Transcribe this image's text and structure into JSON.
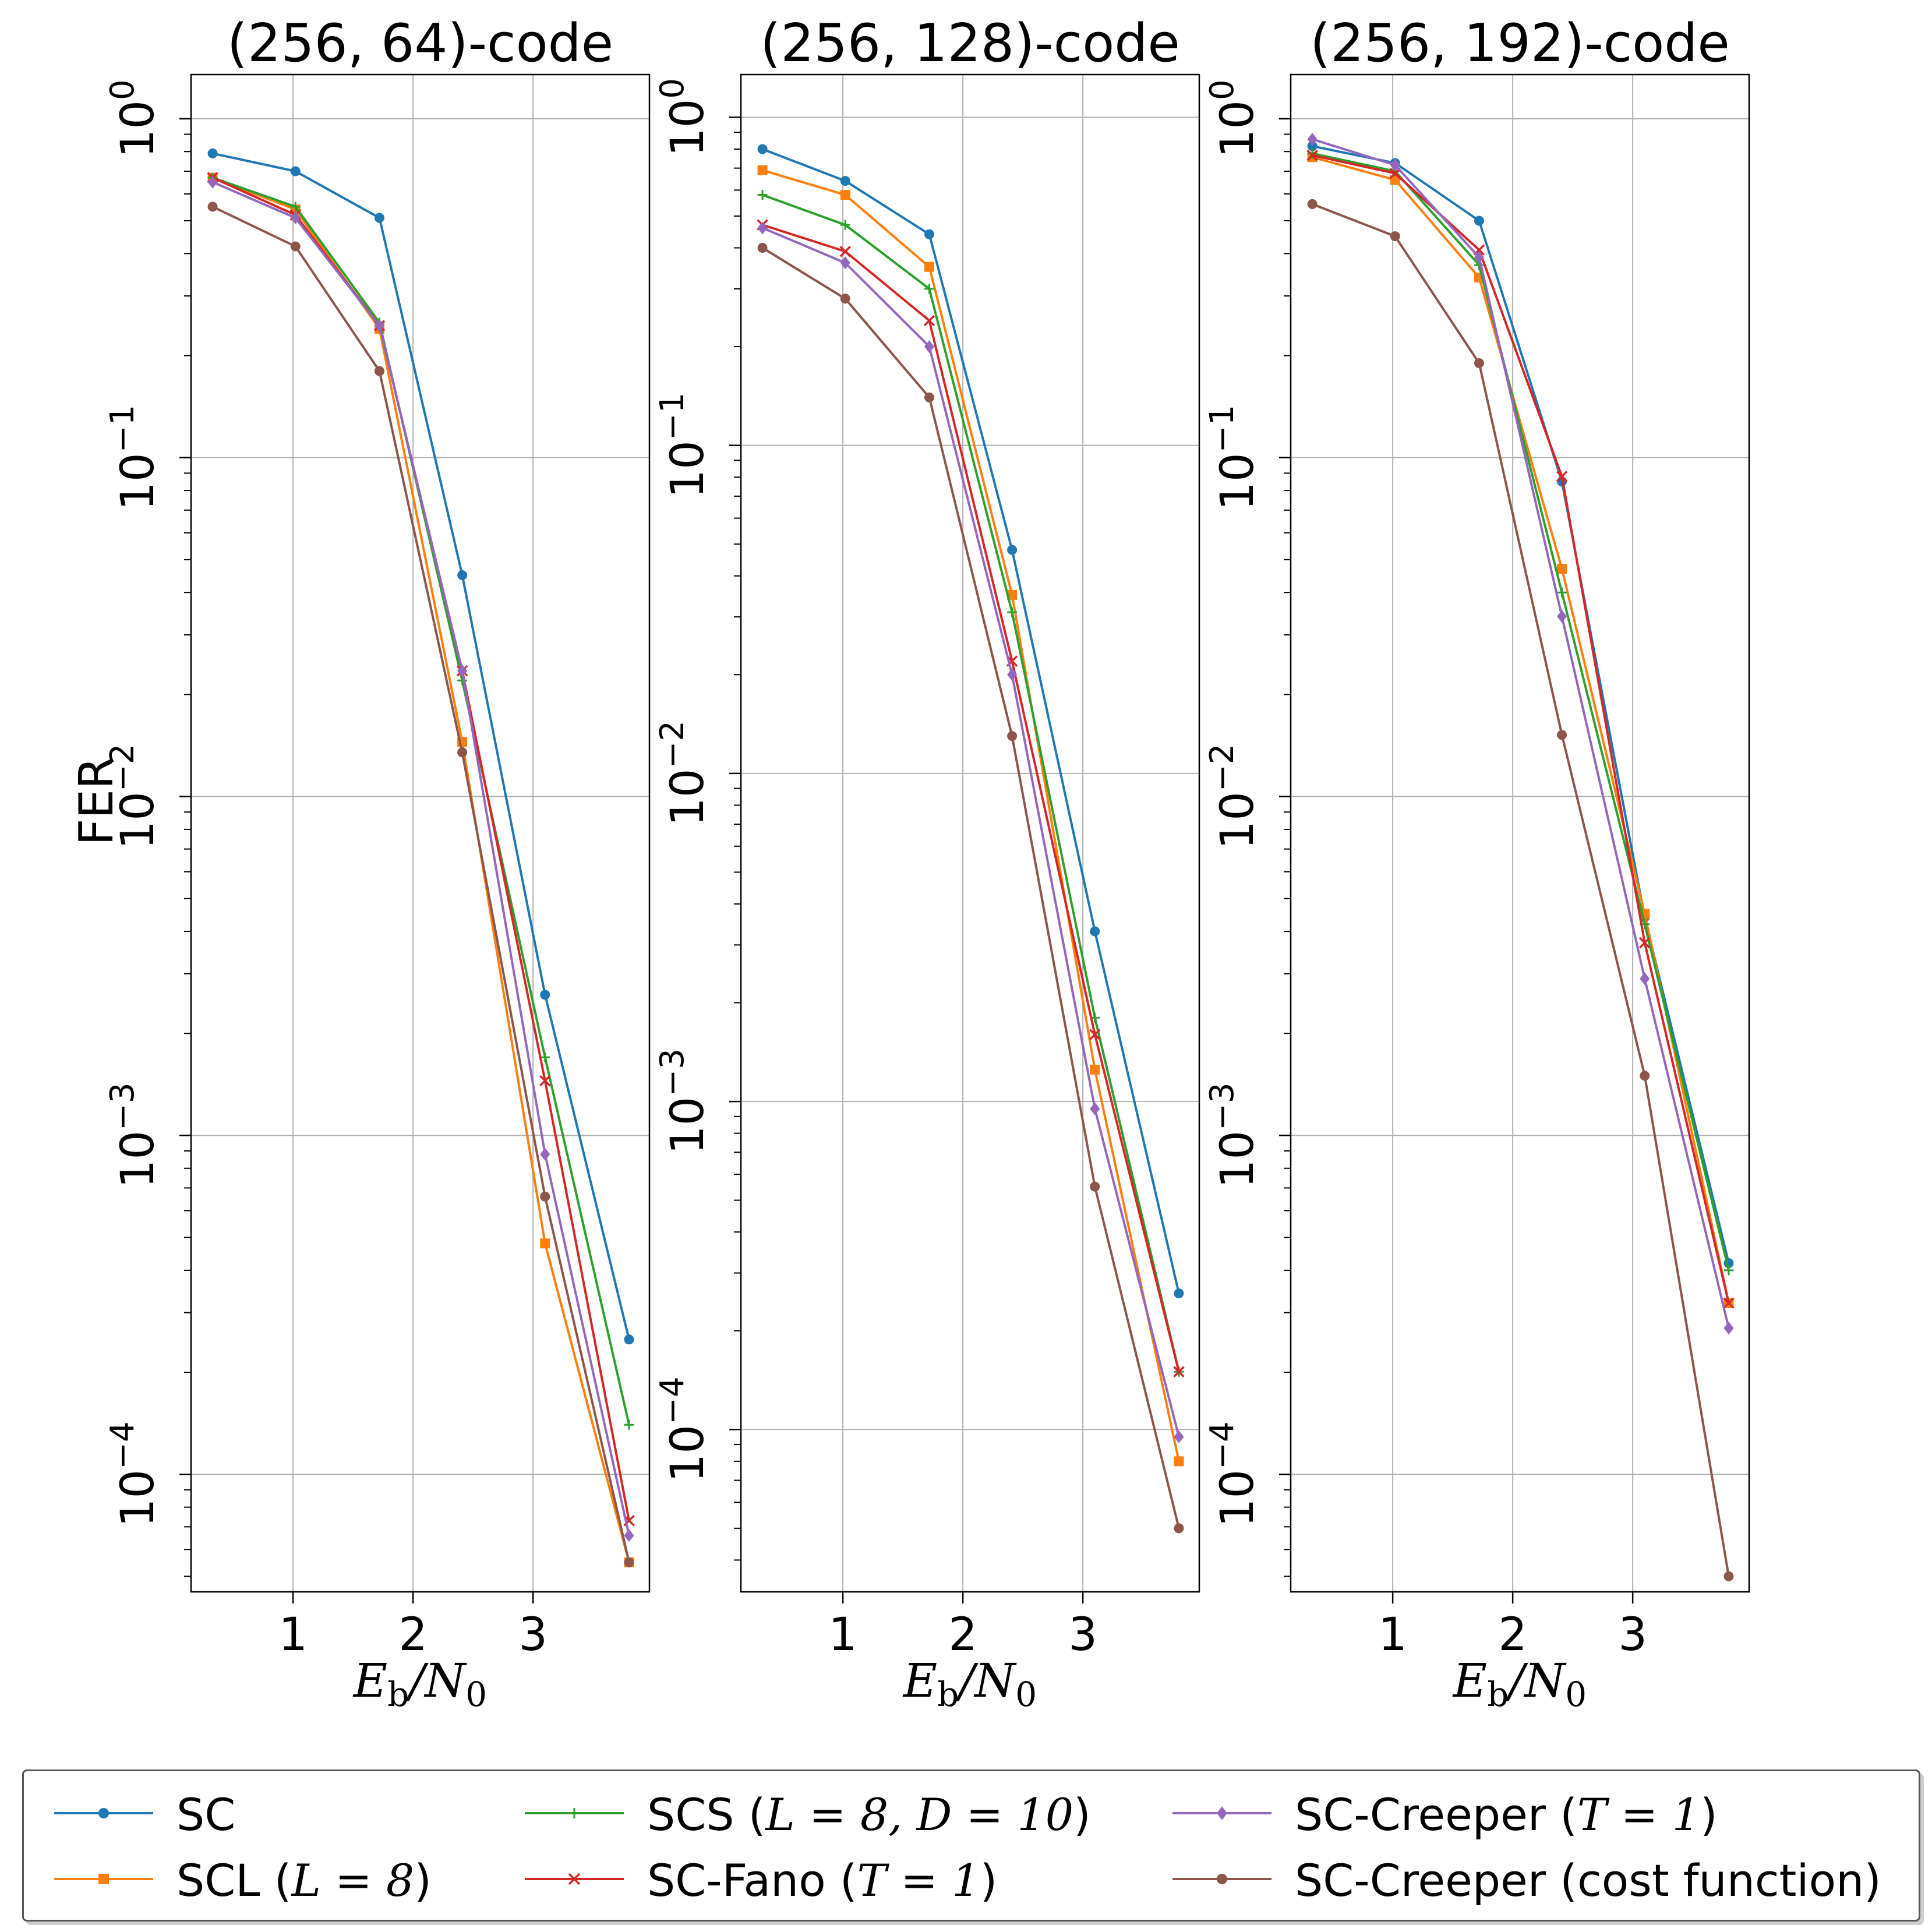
{
  "chart_data": [
    {
      "type": "line",
      "title": "(256, 64)-code",
      "xlabel": "E_b/N_0",
      "ylabel": "FER",
      "yscale": "log",
      "grid": true,
      "xlim": [
        0.15,
        3.97
      ],
      "ylim": [
        4.5e-05,
        1.35
      ],
      "xticks": [
        1,
        2,
        3
      ],
      "x": [
        0.33,
        1.02,
        1.72,
        2.41,
        3.1,
        3.8
      ],
      "series": [
        {
          "name": "SC",
          "values": [
            0.79,
            0.7,
            0.51,
            0.045,
            0.0026,
            0.00025
          ]
        },
        {
          "name": "SCL (L = 8)",
          "values": [
            0.67,
            0.54,
            0.24,
            0.0145,
            0.00048,
            5.5e-05
          ]
        },
        {
          "name": "SCS (L = 8, D = 10)",
          "values": [
            0.67,
            0.55,
            0.25,
            0.022,
            0.0017,
            0.00014
          ]
        },
        {
          "name": "SC-Fano (T = 1)",
          "values": [
            0.67,
            0.52,
            0.245,
            0.0235,
            0.00145,
            7.3e-05
          ]
        },
        {
          "name": "SC-Creeper (T = 1)",
          "values": [
            0.65,
            0.51,
            0.245,
            0.0235,
            0.00088,
            6.6e-05
          ]
        },
        {
          "name": "SC-Creeper (cost function)",
          "values": [
            0.55,
            0.42,
            0.18,
            0.0135,
            0.00066,
            5.5e-05
          ]
        }
      ]
    },
    {
      "type": "line",
      "title": "(256, 128)-code",
      "xlabel": "E_b/N_0",
      "ylabel": "",
      "yscale": "log",
      "grid": true,
      "xlim": [
        0.15,
        3.97
      ],
      "ylim": [
        3.2e-05,
        1.35
      ],
      "xticks": [
        1,
        2,
        3
      ],
      "x": [
        0.33,
        1.02,
        1.72,
        2.41,
        3.1,
        3.8
      ],
      "series": [
        {
          "name": "SC",
          "values": [
            0.8,
            0.64,
            0.44,
            0.048,
            0.0033,
            0.00026
          ]
        },
        {
          "name": "SCL (L = 8)",
          "values": [
            0.69,
            0.58,
            0.35,
            0.035,
            0.00125,
            8e-05
          ]
        },
        {
          "name": "SCS (L = 8, D = 10)",
          "values": [
            0.58,
            0.47,
            0.3,
            0.031,
            0.0018,
            0.00015
          ]
        },
        {
          "name": "SC-Fano (T = 1)",
          "values": [
            0.47,
            0.39,
            0.24,
            0.022,
            0.0016,
            0.00015
          ]
        },
        {
          "name": "SC-Creeper (T = 1)",
          "values": [
            0.46,
            0.36,
            0.2,
            0.02,
            0.00095,
            9.5e-05
          ]
        },
        {
          "name": "SC-Creeper (cost function)",
          "values": [
            0.4,
            0.28,
            0.14,
            0.013,
            0.00055,
            5e-05
          ]
        }
      ]
    },
    {
      "type": "line",
      "title": "(256, 192)-code",
      "xlabel": "E_b/N_0",
      "ylabel": "",
      "yscale": "log",
      "grid": true,
      "xlim": [
        0.15,
        3.97
      ],
      "ylim": [
        4.5e-05,
        1.35
      ],
      "xticks": [
        1,
        2,
        3
      ],
      "x": [
        0.33,
        1.02,
        1.72,
        2.41,
        3.1,
        3.8
      ],
      "series": [
        {
          "name": "SC",
          "values": [
            0.83,
            0.74,
            0.5,
            0.085,
            0.0044,
            0.00042
          ]
        },
        {
          "name": "SCL (L = 8)",
          "values": [
            0.77,
            0.66,
            0.34,
            0.047,
            0.0045,
            0.00032
          ]
        },
        {
          "name": "SCS (L = 8, D = 10)",
          "values": [
            0.79,
            0.7,
            0.37,
            0.04,
            0.0042,
            0.0004
          ]
        },
        {
          "name": "SC-Fano (T = 1)",
          "values": [
            0.78,
            0.69,
            0.41,
            0.088,
            0.0037,
            0.00032
          ]
        },
        {
          "name": "SC-Creeper (T = 1)",
          "values": [
            0.87,
            0.73,
            0.39,
            0.034,
            0.0029,
            0.00027
          ]
        },
        {
          "name": "SC-Creeper (cost function)",
          "values": [
            0.56,
            0.45,
            0.19,
            0.0152,
            0.0015,
            5e-05
          ]
        }
      ]
    }
  ],
  "legend": {
    "placement": "bottom",
    "items": [
      {
        "name": "SC",
        "color": "#1f77b4",
        "marker": "circle",
        "text": "SC",
        "italic": "",
        "tail": ""
      },
      {
        "name": "SCL",
        "color": "#ff7f0e",
        "marker": "square",
        "text": "SCL (",
        "italic": "L = 8",
        "tail": ")"
      },
      {
        "name": "SCS",
        "color": "#2ca02c",
        "marker": "plus",
        "text": "SCS (",
        "italic": "L = 8, D = 10",
        "tail": ")"
      },
      {
        "name": "SC-Fano",
        "color": "#d62728",
        "marker": "x",
        "text": "SC-Fano (",
        "italic": "T = 1",
        "tail": ")"
      },
      {
        "name": "SC-Creeper",
        "color": "#9467bd",
        "marker": "diamond",
        "text": "SC-Creeper (",
        "italic": "T = 1",
        "tail": ")"
      },
      {
        "name": "SC-Creeper-cost",
        "color": "#8c564b",
        "marker": "circle",
        "text": "SC-Creeper (cost function)",
        "italic": "",
        "tail": ""
      }
    ]
  }
}
